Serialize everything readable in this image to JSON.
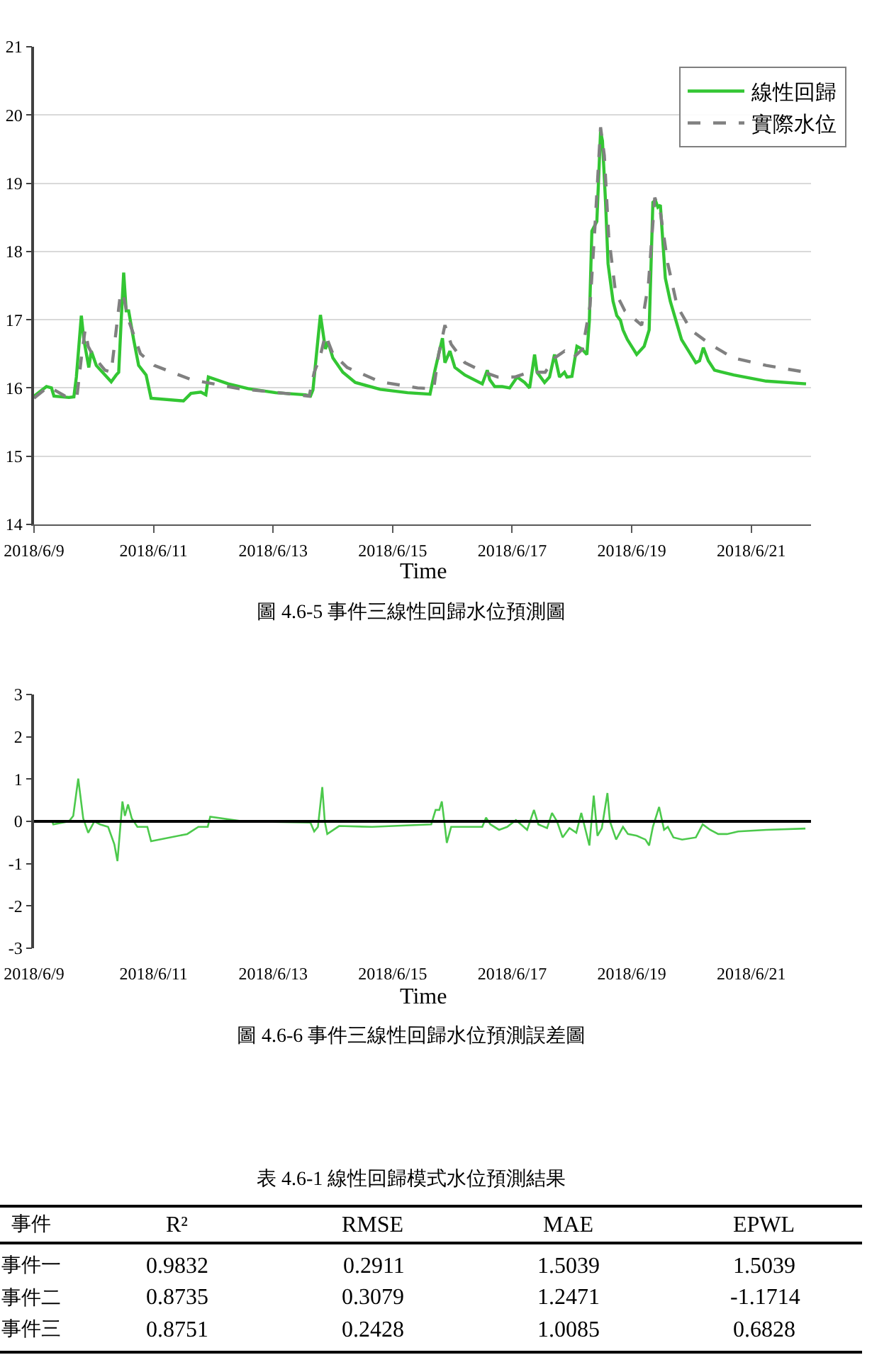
{
  "chart_data": [
    {
      "type": "line",
      "title": "圖 4.6-5 事件三線性回歸水位預測圖",
      "xlabel": "Time",
      "xlim": [
        "2018-06-09",
        "2018-06-22"
      ],
      "xticks": [
        {
          "value": "2018-06-09",
          "label": "2018/6/9"
        },
        {
          "value": "2018-06-11",
          "label": "2018/6/11"
        },
        {
          "value": "2018-06-13",
          "label": "2018/6/13"
        },
        {
          "value": "2018-06-15",
          "label": "2018/6/15"
        },
        {
          "value": "2018-06-17",
          "label": "2018/6/17"
        },
        {
          "value": "2018-06-19",
          "label": "2018/6/19"
        },
        {
          "value": "2018-06-21",
          "label": "2018/6/21"
        }
      ],
      "ylim": [
        14,
        21
      ],
      "yticks": [
        14,
        15,
        16,
        17,
        18,
        19,
        20,
        21
      ],
      "grid": "y",
      "legend": "top right",
      "series": [
        {
          "name": "線性回歸",
          "color": "#33c633",
          "line_style": "solid",
          "x": [
            "2018-06-09T00:00",
            "2018-06-09T05:00",
            "2018-06-09T07:00",
            "2018-06-09T08:00",
            "2018-06-09T14:00",
            "2018-06-09T16:00",
            "2018-06-09T17:00",
            "2018-06-09T19:00",
            "2018-06-09T20:00",
            "2018-06-09T22:00",
            "2018-06-09T23:00",
            "2018-06-10T01:00",
            "2018-06-10T07:00",
            "2018-06-10T09:00",
            "2018-06-10T10:00",
            "2018-06-10T11:00",
            "2018-06-10T12:00",
            "2018-06-10T13:00",
            "2018-06-10T14:00",
            "2018-06-10T16:00",
            "2018-06-10T18:00",
            "2018-06-10T21:00",
            "2018-06-10T23:00",
            "2018-06-11T12:00",
            "2018-06-11T15:00",
            "2018-06-11T19:00",
            "2018-06-11T21:00",
            "2018-06-11T22:00",
            "2018-06-12T06:00",
            "2018-06-12T14:00",
            "2018-06-13T01:00",
            "2018-06-13T13:00",
            "2018-06-13T15:00",
            "2018-06-13T16:00",
            "2018-06-13T18:00",
            "2018-06-13T19:00",
            "2018-06-13T21:00",
            "2018-06-13T22:00",
            "2018-06-14T00:00",
            "2018-06-14T04:00",
            "2018-06-14T09:00",
            "2018-06-14T19:00",
            "2018-06-15T06:00",
            "2018-06-15T15:00",
            "2018-06-15T17:00",
            "2018-06-15T20:00",
            "2018-06-15T21:00",
            "2018-06-15T23:00",
            "2018-06-16T01:00",
            "2018-06-16T05:00",
            "2018-06-16T12:00",
            "2018-06-16T14:00",
            "2018-06-16T15:00",
            "2018-06-16T17:00",
            "2018-06-16T20:00",
            "2018-06-16T23:00",
            "2018-06-17T02:00",
            "2018-06-17T05:00",
            "2018-06-17T07:00",
            "2018-06-17T09:00",
            "2018-06-17T10:00",
            "2018-06-17T13:00",
            "2018-06-17T15:00",
            "2018-06-17T17:00",
            "2018-06-17T19:00",
            "2018-06-17T21:00",
            "2018-06-17T22:00",
            "2018-06-18T00:00",
            "2018-06-18T02:00",
            "2018-06-18T04:00",
            "2018-06-18T06:00",
            "2018-06-18T07:00",
            "2018-06-18T08:00",
            "2018-06-18T10:00",
            "2018-06-18T11:30",
            "2018-06-18T12:15",
            "2018-06-18T13:30",
            "2018-06-18T14:30",
            "2018-06-18T16:30",
            "2018-06-18T18:00",
            "2018-06-18T19:30",
            "2018-06-18T20:30",
            "2018-06-18T22:15",
            "2018-06-19T02:00",
            "2018-06-19T05:00",
            "2018-06-19T07:00",
            "2018-06-19T08:30",
            "2018-06-19T09:30",
            "2018-06-19T10:30",
            "2018-06-19T11:30",
            "2018-06-19T13:30",
            "2018-06-19T15:30",
            "2018-06-19T20:00",
            "2018-06-20T01:45",
            "2018-06-20T03:15",
            "2018-06-20T04:45",
            "2018-06-20T06:45",
            "2018-06-20T09:15",
            "2018-06-20T17:00",
            "2018-06-21T06:00",
            "2018-06-21T22:00"
          ],
          "values": [
            15.88,
            16.02,
            16.0,
            15.88,
            15.86,
            15.87,
            16.16,
            17.06,
            16.71,
            16.3,
            16.54,
            16.33,
            16.09,
            16.19,
            16.23,
            16.99,
            17.69,
            17.13,
            17.13,
            16.71,
            16.33,
            16.19,
            15.85,
            15.81,
            15.92,
            15.94,
            15.9,
            16.16,
            16.06,
            15.99,
            15.93,
            15.9,
            15.88,
            15.97,
            16.71,
            17.07,
            16.57,
            16.68,
            16.44,
            16.23,
            16.08,
            15.98,
            15.93,
            15.91,
            16.26,
            16.73,
            16.37,
            16.54,
            16.3,
            16.19,
            16.06,
            16.26,
            16.12,
            16.02,
            16.02,
            16.0,
            16.16,
            16.08,
            16.0,
            16.49,
            16.23,
            16.08,
            16.16,
            16.49,
            16.16,
            16.23,
            16.16,
            16.17,
            16.61,
            16.57,
            16.49,
            16.99,
            18.3,
            18.44,
            19.76,
            19.62,
            18.72,
            17.82,
            17.27,
            17.06,
            16.99,
            16.85,
            16.71,
            16.49,
            16.61,
            16.85,
            18.72,
            18.75,
            18.65,
            18.68,
            17.61,
            17.27,
            16.71,
            16.37,
            16.4,
            16.59,
            16.4,
            16.26,
            16.19,
            16.1,
            16.06
          ]
        },
        {
          "name": "實際水位",
          "color": "#808080",
          "line_style": "dashed",
          "x": [
            "2018-06-09T00:00",
            "2018-06-09T05:45",
            "2018-06-09T12:30",
            "2018-06-09T17:15",
            "2018-06-09T19:00",
            "2018-06-09T20:30",
            "2018-06-09T21:45",
            "2018-06-09T23:45",
            "2018-06-10T04:30",
            "2018-06-10T07:00",
            "2018-06-10T09:00",
            "2018-06-10T10:45",
            "2018-06-10T12:00",
            "2018-06-10T14:00",
            "2018-06-10T18:45",
            "2018-06-11T00:15",
            "2018-06-11T15:15",
            "2018-06-12T10:15",
            "2018-06-13T05:00",
            "2018-06-13T14:30",
            "2018-06-13T16:30",
            "2018-06-13T18:45",
            "2018-06-13T21:00",
            "2018-06-14T00:00",
            "2018-06-14T05:45",
            "2018-06-14T19:00",
            "2018-06-15T10:00",
            "2018-06-15T16:30",
            "2018-06-15T18:30",
            "2018-06-15T21:00",
            "2018-06-15T23:30",
            "2018-06-16T05:00",
            "2018-06-16T12:45",
            "2018-06-16T18:15",
            "2018-06-17T01:00",
            "2018-06-17T06:45",
            "2018-06-17T13:15",
            "2018-06-17T17:00",
            "2018-06-17T21:00",
            "2018-06-18T00:30",
            "2018-06-18T04:15",
            "2018-06-18T07:15",
            "2018-06-18T09:15",
            "2018-06-18T11:30",
            "2018-06-18T13:00",
            "2018-06-18T14:45",
            "2018-06-18T17:30",
            "2018-06-18T21:15",
            "2018-06-19T04:00",
            "2018-06-19T06:45",
            "2018-06-19T09:15",
            "2018-06-19T11:30",
            "2018-06-19T14:30",
            "2018-06-19T18:15",
            "2018-06-19T23:45",
            "2018-06-20T07:30",
            "2018-06-20T16:45",
            "2018-06-21T06:00",
            "2018-06-21T22:00"
          ],
          "values": [
            15.85,
            16.02,
            15.88,
            15.88,
            16.44,
            16.85,
            16.61,
            16.47,
            16.26,
            16.23,
            16.85,
            17.4,
            17.33,
            16.99,
            16.5,
            16.33,
            16.12,
            15.99,
            15.92,
            15.88,
            16.23,
            16.44,
            16.78,
            16.5,
            16.3,
            16.09,
            16.0,
            15.99,
            16.5,
            16.92,
            16.64,
            16.37,
            16.23,
            16.16,
            16.16,
            16.23,
            16.23,
            16.44,
            16.54,
            16.44,
            16.57,
            17.2,
            18.37,
            19.82,
            19.41,
            18.23,
            17.4,
            17.13,
            16.92,
            17.54,
            18.79,
            18.58,
            17.82,
            17.2,
            16.85,
            16.64,
            16.44,
            16.33,
            16.23
          ]
        }
      ]
    },
    {
      "type": "line",
      "title": "圖 4.6-6 事件三線性回歸水位預測誤差圖",
      "xlabel": "Time",
      "xlim": [
        "2018-06-09",
        "2018-06-22"
      ],
      "xticks": [
        {
          "value": "2018-06-09",
          "label": "2018/6/9"
        },
        {
          "value": "2018-06-11",
          "label": "2018/6/11"
        },
        {
          "value": "2018-06-13",
          "label": "2018/6/13"
        },
        {
          "value": "2018-06-15",
          "label": "2018/6/15"
        },
        {
          "value": "2018-06-17",
          "label": "2018/6/17"
        },
        {
          "value": "2018-06-19",
          "label": "2018/6/19"
        },
        {
          "value": "2018-06-21",
          "label": "2018/6/21"
        }
      ],
      "ylim": [
        -3,
        3
      ],
      "yticks": [
        -3,
        -2,
        -1,
        0,
        1,
        2,
        3
      ],
      "grid": false,
      "ref_lines": [
        {
          "axis": "y",
          "value": 0,
          "color": "#000000"
        }
      ],
      "series": [
        {
          "color": "#4cc94c",
          "x": [
            "2018-06-09T00:00",
            "2018-06-09T07:15",
            "2018-06-09T07:45",
            "2018-06-09T14:00",
            "2018-06-09T15:45",
            "2018-06-09T17:45",
            "2018-06-09T19:45",
            "2018-06-09T21:45",
            "2018-06-10T00:15",
            "2018-06-10T02:30",
            "2018-06-10T05:45",
            "2018-06-10T08:15",
            "2018-06-10T09:30",
            "2018-06-10T11:30",
            "2018-06-10T12:30",
            "2018-06-10T13:45",
            "2018-06-10T15:15",
            "2018-06-10T17:30",
            "2018-06-10T21:30",
            "2018-06-10T23:00",
            "2018-06-11T13:30",
            "2018-06-11T18:00",
            "2018-06-11T21:45",
            "2018-06-11T22:45",
            "2018-06-12T12:00",
            "2018-06-13T15:00",
            "2018-06-13T16:30",
            "2018-06-13T18:00",
            "2018-06-13T19:45",
            "2018-06-13T20:45",
            "2018-06-13T21:45",
            "2018-06-14T02:30",
            "2018-06-14T15:45",
            "2018-06-15T15:30",
            "2018-06-15T17:15",
            "2018-06-15T18:45",
            "2018-06-15T19:45",
            "2018-06-15T21:00",
            "2018-06-15T21:45",
            "2018-06-15T23:30",
            "2018-06-16T12:00",
            "2018-06-16T13:30",
            "2018-06-16T15:15",
            "2018-06-16T18:45",
            "2018-06-16T22:00",
            "2018-06-17T01:30",
            "2018-06-17T03:30",
            "2018-06-17T06:00",
            "2018-06-17T08:45",
            "2018-06-17T10:30",
            "2018-06-17T14:00",
            "2018-06-17T16:00",
            "2018-06-17T18:00",
            "2018-06-17T20:15",
            "2018-06-17T23:00",
            "2018-06-18T01:45",
            "2018-06-18T03:45",
            "2018-06-18T07:00",
            "2018-06-18T08:45",
            "2018-06-18T10:15",
            "2018-06-18T12:00",
            "2018-06-18T14:15",
            "2018-06-18T15:15",
            "2018-06-18T17:45",
            "2018-06-18T20:30",
            "2018-06-18T22:30",
            "2018-06-19T02:00",
            "2018-06-19T05:30",
            "2018-06-19T07:00",
            "2018-06-19T08:30",
            "2018-06-19T11:00",
            "2018-06-19T13:00",
            "2018-06-19T14:30",
            "2018-06-19T16:45",
            "2018-06-19T20:15",
            "2018-06-20T01:45",
            "2018-06-20T04:30",
            "2018-06-20T07:30",
            "2018-06-20T10:45",
            "2018-06-20T14:15",
            "2018-06-20T18:45",
            "2018-06-21T06:00",
            "2018-06-21T21:45"
          ],
          "values": [
            0,
            0,
            -0.07,
            0,
            0.13,
            1.01,
            0.07,
            -0.27,
            0,
            -0.07,
            -0.13,
            -0.54,
            -0.94,
            0.47,
            0.13,
            0.4,
            0.07,
            -0.13,
            -0.13,
            -0.47,
            -0.3,
            -0.13,
            -0.13,
            0.11,
            0,
            -0.03,
            -0.24,
            -0.13,
            0.81,
            0,
            -0.3,
            -0.11,
            -0.13,
            -0.07,
            0.27,
            0.27,
            0.47,
            -0.13,
            -0.51,
            -0.13,
            -0.13,
            0.09,
            -0.07,
            -0.2,
            -0.13,
            0.03,
            -0.07,
            -0.2,
            0.27,
            -0.07,
            -0.16,
            0.2,
            0,
            -0.38,
            -0.16,
            -0.27,
            0.2,
            -0.57,
            0.61,
            -0.34,
            -0.16,
            0.67,
            0,
            -0.43,
            -0.13,
            -0.3,
            -0.34,
            -0.43,
            -0.57,
            -0.13,
            0.34,
            -0.2,
            -0.13,
            -0.38,
            -0.43,
            -0.38,
            -0.07,
            -0.2,
            -0.3,
            -0.3,
            -0.24,
            -0.2,
            -0.17
          ]
        }
      ]
    },
    {
      "type": "other",
      "title": "表 4.6-1 線性回歸模式水位預測結果",
      "ylabel": "事件",
      "categories": [
        "事件一",
        "事件二",
        "事件三"
      ],
      "data_labels": true,
      "series": [
        {
          "name": "R²",
          "values": [
            0.9832,
            0.8735,
            0.8751
          ]
        },
        {
          "name": "RMSE",
          "values": [
            0.2911,
            0.3079,
            0.2428
          ]
        },
        {
          "name": "MAE",
          "values": [
            1.5039,
            1.2471,
            1.0085
          ]
        },
        {
          "name": "EPWL",
          "values": [
            1.5039,
            -1.1714,
            0.6828
          ]
        }
      ]
    }
  ]
}
